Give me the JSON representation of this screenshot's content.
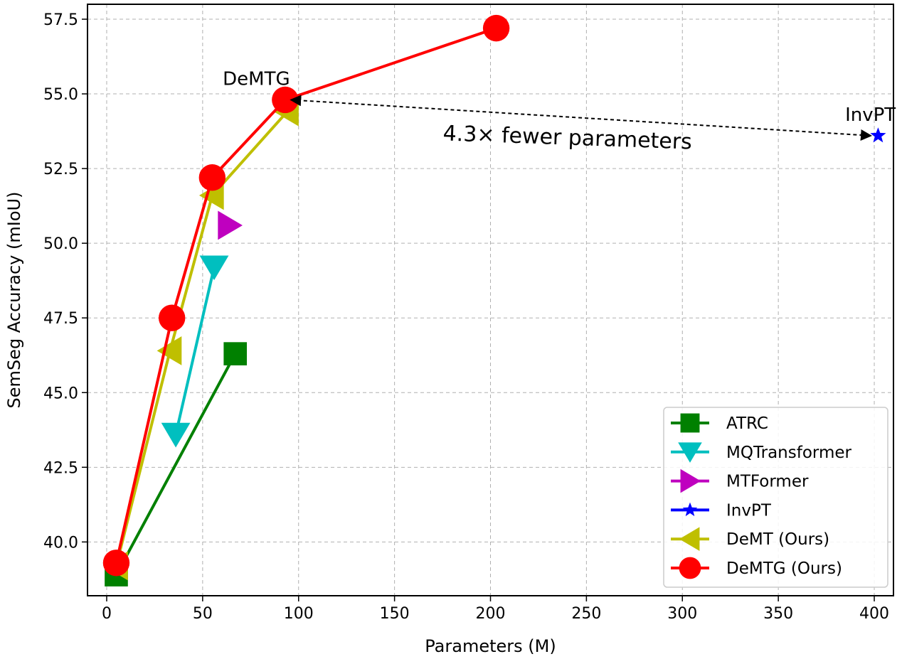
{
  "chart_data": {
    "type": "line",
    "xlabel": "Parameters (M)",
    "ylabel": "SemSeg Accuracy (mIoU)",
    "xlim": [
      -10,
      410
    ],
    "ylim": [
      38.2,
      58.0
    ],
    "xticks": [
      0,
      50,
      100,
      150,
      200,
      250,
      300,
      350,
      400
    ],
    "yticks": [
      40.0,
      42.5,
      45.0,
      47.5,
      50.0,
      52.5,
      55.0,
      57.5
    ],
    "xtick_labels": [
      "0",
      "50",
      "100",
      "150",
      "200",
      "250",
      "300",
      "350",
      "400"
    ],
    "ytick_labels": [
      "40.0",
      "42.5",
      "45.0",
      "47.5",
      "50.0",
      "52.5",
      "55.0",
      "57.5"
    ],
    "grid": true,
    "legend_position": "bottom-right",
    "series": [
      {
        "name": "ATRC",
        "color": "#008000",
        "marker": "square",
        "x": [
          5,
          67
        ],
        "y": [
          38.9,
          46.3
        ]
      },
      {
        "name": "MQTransformer",
        "color": "#00bfbf",
        "marker": "triangle-down",
        "x": [
          56,
          36
        ],
        "y": [
          49.2,
          43.6
        ]
      },
      {
        "name": "MTFormer",
        "color": "#bf00bf",
        "marker": "triangle-right",
        "x": [
          64
        ],
        "y": [
          50.6
        ]
      },
      {
        "name": "InvPT",
        "color": "#0000ff",
        "marker": "star",
        "x": [
          402
        ],
        "y": [
          53.6
        ]
      },
      {
        "name": "DeMT (Ours)",
        "color": "#bfbf00",
        "marker": "triangle-left",
        "x": [
          5,
          33,
          55,
          94
        ],
        "y": [
          39.2,
          46.4,
          51.6,
          54.4
        ]
      },
      {
        "name": "DeMTG (Ours)",
        "color": "#ff0000",
        "marker": "circle",
        "x": [
          5,
          34,
          55,
          93,
          203
        ],
        "y": [
          39.3,
          47.5,
          52.2,
          54.8,
          57.2
        ]
      }
    ],
    "annotations": [
      {
        "text": "DeMTG",
        "x": 78,
        "y": 55.3
      },
      {
        "text": "InvPT",
        "x": 398,
        "y": 54.1
      },
      {
        "text": "4.3× fewer parameters",
        "x": 240,
        "y": 53.3,
        "rotation_deg": 2
      },
      {
        "arrow": "double-headed-dashed",
        "from": [
          93,
          54.8
        ],
        "to": [
          402,
          53.6
        ]
      }
    ]
  }
}
